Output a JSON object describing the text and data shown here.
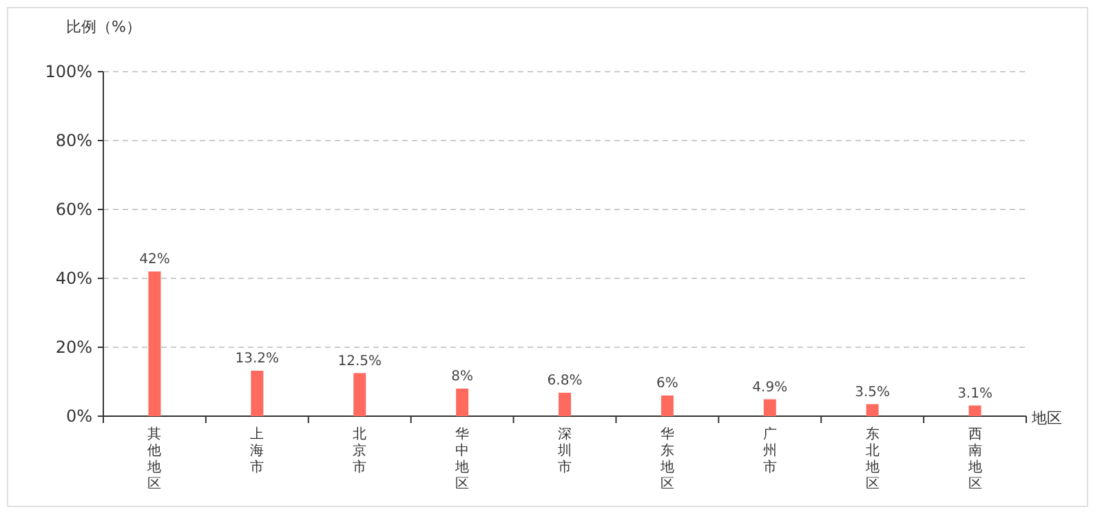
{
  "chart_data": {
    "type": "bar",
    "ylabel": "比例（%）",
    "xlabel": "地区",
    "categories": [
      "其他地区",
      "上海市",
      "北京市",
      "华中地区",
      "深圳市",
      "华东地区",
      "广州市",
      "东北地区",
      "西南地区"
    ],
    "values": [
      42,
      13.2,
      12.5,
      8,
      6.8,
      6,
      4.9,
      3.5,
      3.1
    ],
    "value_labels": [
      "42%",
      "13.2%",
      "12.5%",
      "8%",
      "6.8%",
      "6%",
      "4.9%",
      "3.5%",
      "3.1%"
    ],
    "color": "#ff6a5f",
    "ylim": [
      0,
      100
    ],
    "yticks": [
      {
        "value": 0,
        "label": "0%"
      },
      {
        "value": 20,
        "label": "20%"
      },
      {
        "value": 40,
        "label": "40%"
      },
      {
        "value": 60,
        "label": "60%"
      },
      {
        "value": 80,
        "label": "80%"
      },
      {
        "value": 100,
        "label": "100%"
      }
    ],
    "grid": "y"
  }
}
